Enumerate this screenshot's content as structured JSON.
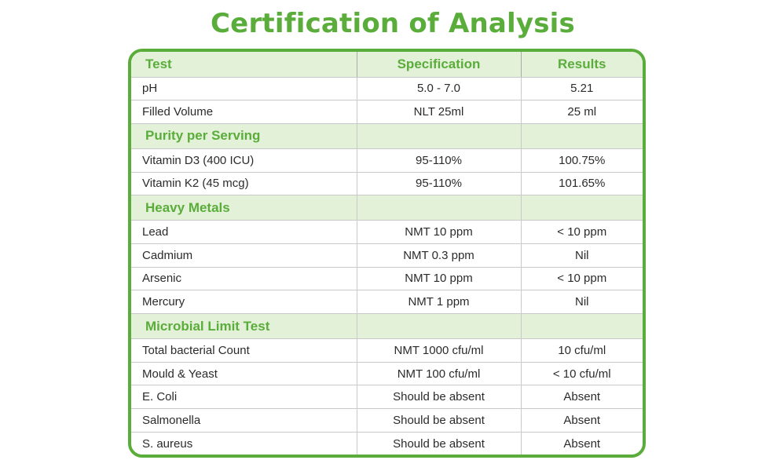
{
  "title": "Certification of Analysis",
  "columns": {
    "test": "Test",
    "specification": "Specification",
    "results": "Results"
  },
  "rows": {
    "ph": {
      "test": "pH",
      "specification": "5.0 - 7.0",
      "results": "5.21"
    },
    "filled_volume": {
      "test": "Filled Volume",
      "specification": "NLT 25ml",
      "results": "25 ml"
    },
    "purity_section": "Purity per Serving",
    "vitamin_d3": {
      "test": "Vitamin D3 (400 ICU)",
      "specification": "95-110%",
      "results": "100.75%"
    },
    "vitamin_k2": {
      "test": "Vitamin K2 (45 mcg)",
      "specification": "95-110%",
      "results": "101.65%"
    },
    "heavy_metals_section": "Heavy Metals",
    "lead": {
      "test": "Lead",
      "specification": "NMT 10 ppm",
      "results": "< 10 ppm"
    },
    "cadmium": {
      "test": "Cadmium",
      "specification": "NMT 0.3 ppm",
      "results": "Nil"
    },
    "arsenic": {
      "test": "Arsenic",
      "specification": "NMT 10 ppm",
      "results": "< 10 ppm"
    },
    "mercury": {
      "test": "Mercury",
      "specification": "NMT 1 ppm",
      "results": "Nil"
    },
    "microbial_section": "Microbial Limit Test",
    "total_bacterial": {
      "test": "Total bacterial Count",
      "specification": "NMT 1000 cfu/ml",
      "results": "10 cfu/ml"
    },
    "mould_yeast": {
      "test": "Mould & Yeast",
      "specification": "NMT 100 cfu/ml",
      "results": "< 10 cfu/ml"
    },
    "e_coli": {
      "test": "E. Coli",
      "specification": "Should be absent",
      "results": "Absent"
    },
    "salmonella": {
      "test": "Salmonella",
      "specification": "Should be absent",
      "results": "Absent"
    },
    "s_aureus": {
      "test": "S. aureus",
      "specification": "Should be absent",
      "results": "Absent"
    }
  },
  "colors": {
    "accent_green": "#5aad3a",
    "band_fill": "#e4f1d9",
    "grid_line": "#c9c9c9"
  }
}
